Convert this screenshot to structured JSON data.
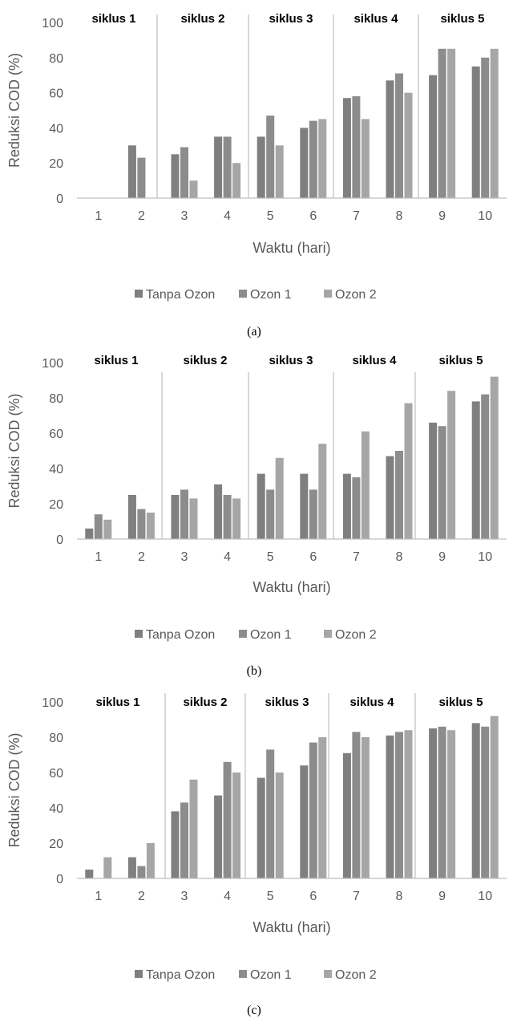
{
  "colors": {
    "tanpa_ozon": "#7f7f7f",
    "ozon_1": "#8c8c8c",
    "ozon_2": "#a6a6a6",
    "axis": "#bfbfbf",
    "cycle_divider": "#bfbfbf"
  },
  "chart_data": [
    {
      "type": "bar",
      "caption": "(a)",
      "categories": [
        "1",
        "2",
        "3",
        "4",
        "5",
        "6",
        "7",
        "8",
        "9",
        "10"
      ],
      "cycles": [
        "siklus  1",
        "siklus  2",
        "siklus  3",
        "siklus  4",
        "siklus  5"
      ],
      "series": [
        {
          "name": "Tanpa Ozon",
          "values": [
            0,
            30,
            25,
            35,
            35,
            40,
            57,
            67,
            70,
            75
          ]
        },
        {
          "name": "Ozon 1",
          "values": [
            0,
            23,
            29,
            35,
            47,
            44,
            58,
            71,
            85,
            80
          ]
        },
        {
          "name": "Ozon 2",
          "values": [
            0,
            0,
            10,
            20,
            30,
            45,
            45,
            60,
            85,
            85
          ]
        }
      ],
      "xlabel": "Waktu (hari)",
      "ylabel": "Reduksi COD (%)",
      "ylim": [
        0,
        100
      ],
      "yticks": [
        0,
        20,
        40,
        60,
        80,
        100
      ],
      "grid": false,
      "legend_position": "bottom"
    },
    {
      "type": "bar",
      "caption": "(b)",
      "categories": [
        "1",
        "2",
        "3",
        "4",
        "5",
        "6",
        "7",
        "8",
        "9",
        "10"
      ],
      "cycles": [
        "siklus  1",
        "siklus  2",
        "siklus  3",
        "siklus  4",
        "siklus  5"
      ],
      "series": [
        {
          "name": "Tanpa Ozon",
          "values": [
            6,
            25,
            25,
            31,
            37,
            37,
            37,
            47,
            66,
            78
          ]
        },
        {
          "name": "Ozon 1",
          "values": [
            14,
            17,
            28,
            25,
            28,
            28,
            35,
            50,
            64,
            82
          ]
        },
        {
          "name": "Ozon 2",
          "values": [
            11,
            15,
            23,
            23,
            46,
            54,
            61,
            77,
            84,
            92
          ]
        }
      ],
      "xlabel": "Waktu (hari)",
      "ylabel": "Reduksi COD (%)",
      "ylim": [
        0,
        100
      ],
      "yticks": [
        0,
        20,
        40,
        60,
        80,
        100
      ],
      "grid": false,
      "legend_position": "bottom"
    },
    {
      "type": "bar",
      "caption": "(c)",
      "categories": [
        "1",
        "2",
        "3",
        "4",
        "5",
        "6",
        "7",
        "8",
        "9",
        "10"
      ],
      "cycles": [
        "siklus  1",
        "siklus  2",
        "siklus  3",
        "siklus  4",
        "siklus  5"
      ],
      "series": [
        {
          "name": "Tanpa Ozon",
          "values": [
            5,
            12,
            38,
            47,
            57,
            64,
            71,
            81,
            85,
            88
          ]
        },
        {
          "name": "Ozon 1",
          "values": [
            0,
            7,
            43,
            66,
            73,
            77,
            83,
            83,
            86,
            86
          ]
        },
        {
          "name": "Ozon 2",
          "values": [
            12,
            20,
            56,
            60,
            60,
            80,
            80,
            84,
            84,
            92
          ]
        }
      ],
      "xlabel": "Waktu (hari)",
      "ylabel": "Reduksi COD (%)",
      "ylim": [
        0,
        100
      ],
      "yticks": [
        0,
        20,
        40,
        60,
        80,
        100
      ],
      "grid": false,
      "legend_position": "bottom"
    }
  ]
}
